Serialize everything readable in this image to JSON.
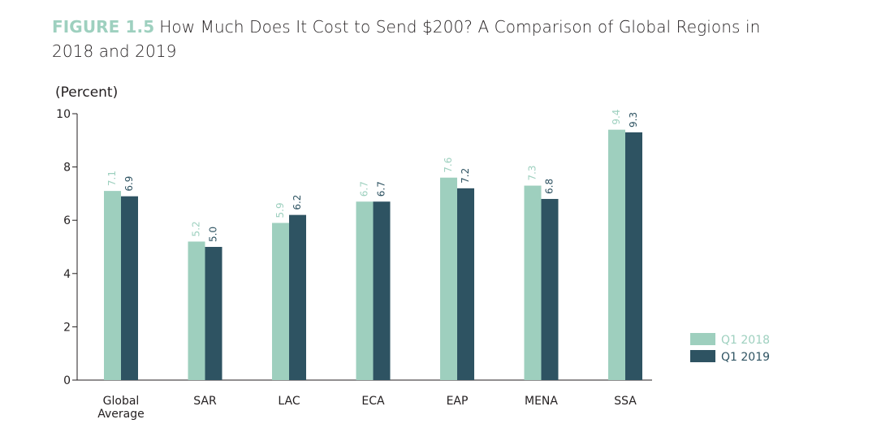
{
  "figure": {
    "label": "FIGURE 1.5",
    "title": "How Much Does It Cost to Send $200? A Comparison of Global Regions in 2018 and 2019"
  },
  "colors": {
    "q1_2018": "#9ecfbe",
    "q1_2019": "#2e5362",
    "axis": "#231f20",
    "label_2018": "#9ed0bf"
  },
  "chart_data": {
    "type": "bar",
    "ylabel": "(Percent)",
    "ylim": [
      0,
      10
    ],
    "yticks": [
      "0",
      "2",
      "4",
      "6",
      "8",
      "10"
    ],
    "categories": [
      [
        "Global",
        "Average"
      ],
      [
        "SAR"
      ],
      [
        "LAC"
      ],
      [
        "ECA"
      ],
      [
        "EAP"
      ],
      [
        "MENA"
      ],
      [
        "SSA"
      ]
    ],
    "series": [
      {
        "name": "Q1 2018",
        "values": [
          7.1,
          5.2,
          5.9,
          6.7,
          7.6,
          7.3,
          9.4
        ],
        "labels": [
          "7.1",
          "5.2",
          "5.9",
          "6.7",
          "7.6",
          "7.3",
          "9.4"
        ]
      },
      {
        "name": "Q1 2019",
        "values": [
          6.9,
          5.0,
          6.2,
          6.7,
          7.2,
          6.8,
          9.3
        ],
        "labels": [
          "6.9",
          "5.0",
          "6.2",
          "6.7",
          "7.2",
          "6.8",
          "9.3"
        ]
      }
    ],
    "legend_position": "right"
  }
}
